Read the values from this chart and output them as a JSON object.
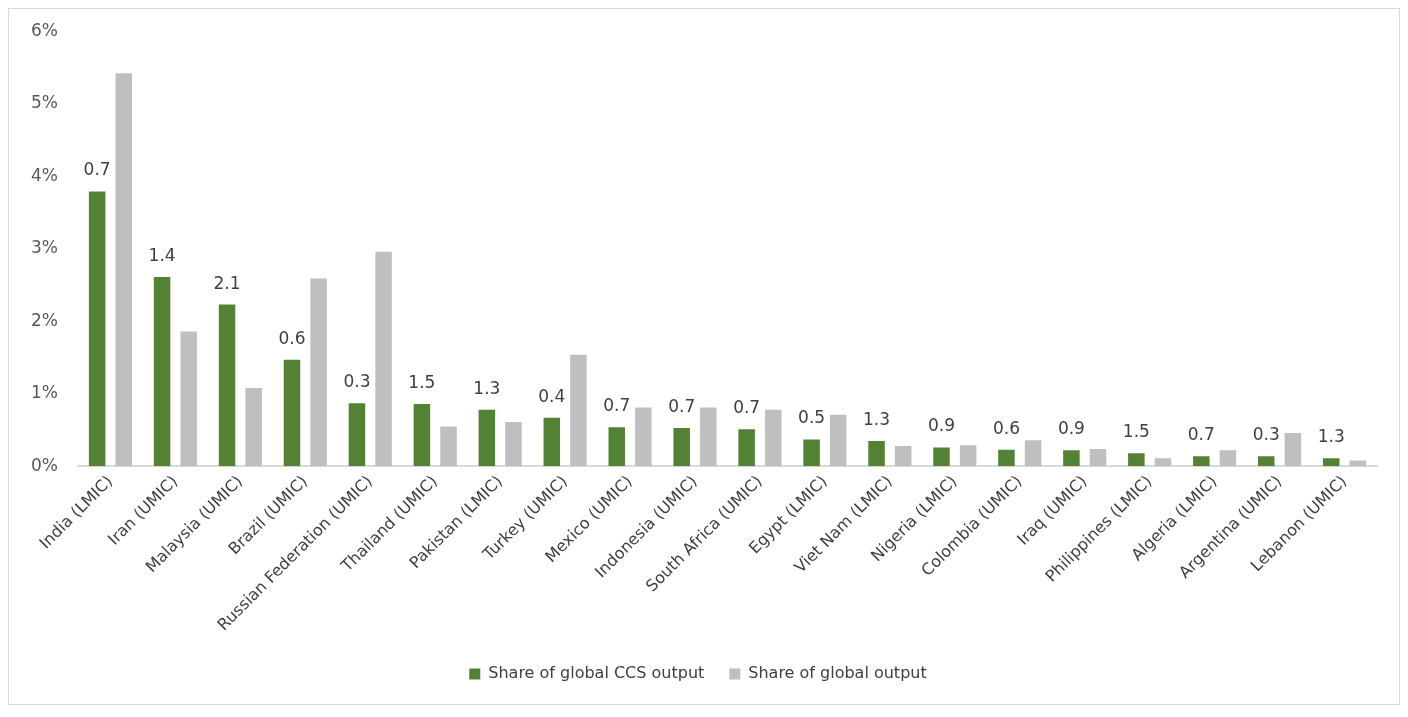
{
  "chart_data": {
    "type": "bar",
    "categories": [
      "India (LMIC)",
      "Iran (UMIC)",
      "Malaysia (UMIC)",
      "Brazil (UMIC)",
      "Russian Federation (UMIC)",
      "Thailand (UMIC)",
      "Pakistan (LMIC)",
      "Turkey (UMIC)",
      "Mexico (UMIC)",
      "Indonesia (UMIC)",
      "South Africa (UMIC)",
      "Egypt (LMIC)",
      "Viet Nam (LMIC)",
      "Nigeria (LMIC)",
      "Colombia (UMIC)",
      "Iraq (UMIC)",
      "Philippines (LMIC)",
      "Algeria (LMIC)",
      "Argentina (UMIC)",
      "Lebanon (UMIC)"
    ],
    "series": [
      {
        "name": "Share of global CCS output",
        "color": "#548235",
        "values": [
          3.79,
          2.61,
          2.23,
          1.47,
          0.87,
          0.86,
          0.78,
          0.67,
          0.54,
          0.53,
          0.51,
          0.37,
          0.35,
          0.26,
          0.23,
          0.22,
          0.18,
          0.14,
          0.14,
          0.11
        ]
      },
      {
        "name": "Share of global output",
        "color": "#bfbfbf",
        "values": [
          5.42,
          1.86,
          1.08,
          2.59,
          2.96,
          0.55,
          0.61,
          1.54,
          0.81,
          0.81,
          0.78,
          0.71,
          0.28,
          0.29,
          0.36,
          0.24,
          0.11,
          0.22,
          0.46,
          0.08
        ]
      }
    ],
    "ylim": [
      0,
      6
    ],
    "yticks": [
      {
        "value": 0,
        "label": "0%"
      },
      {
        "value": 1,
        "label": "1%"
      },
      {
        "value": 2,
        "label": "2%"
      },
      {
        "value": 3,
        "label": "3%"
      },
      {
        "value": 4,
        "label": "4%"
      },
      {
        "value": 5,
        "label": "5%"
      },
      {
        "value": 6,
        "label": "6%"
      }
    ],
    "annotations": [
      "0.7",
      "1.4",
      "2.1",
      "0.6",
      "0.3",
      "1.5",
      "1.3",
      "0.4",
      "0.7",
      "0.7",
      "0.7",
      "0.5",
      "1.3",
      "0.9",
      "0.6",
      "0.9",
      "1.5",
      "0.7",
      "0.3",
      "1.3"
    ],
    "grid": false,
    "legend": "bottom"
  }
}
